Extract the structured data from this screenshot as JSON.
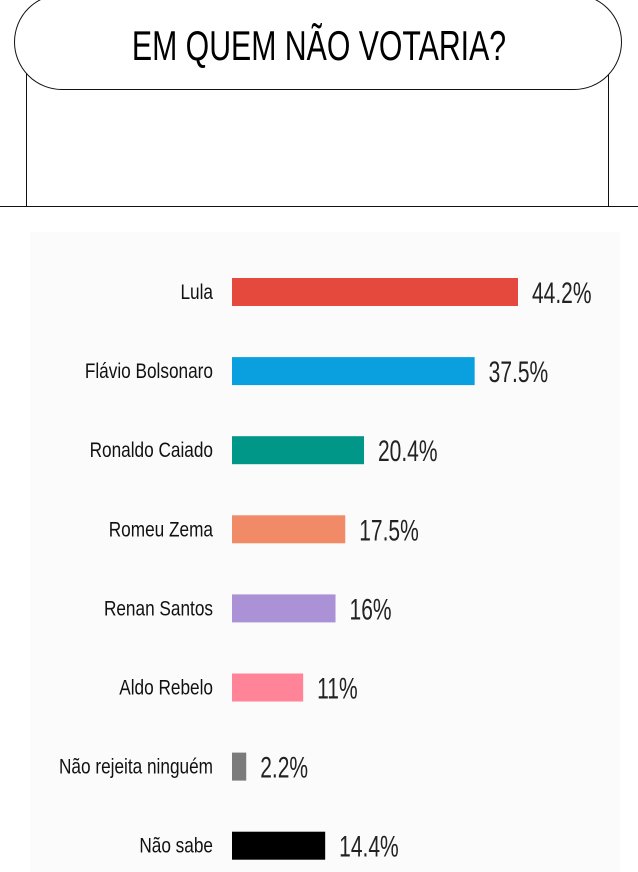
{
  "header": {
    "title": "EM QUEM NÃO VOTARIA?"
  },
  "chart_data": {
    "type": "bar",
    "orientation": "horizontal",
    "categories": [
      "Lula",
      "Flávio Bolsonaro",
      "Ronaldo Caiado",
      "Romeu Zema",
      "Renan Santos",
      "Aldo Rebelo",
      "Não rejeita ninguém",
      "Não sabe"
    ],
    "values": [
      44.2,
      37.5,
      20.4,
      17.5,
      16,
      11,
      2.2,
      14.4
    ],
    "value_labels": [
      "44.2%",
      "37.5%",
      "20.4%",
      "17.5%",
      "16%",
      "11%",
      "2.2%",
      "14.4%"
    ],
    "colors": [
      "#e5483d",
      "#0aa0e0",
      "#009688",
      "#f08a67",
      "#ab92d6",
      "#ff8497",
      "#7b7b7b",
      "#000000"
    ],
    "grid": false
  }
}
